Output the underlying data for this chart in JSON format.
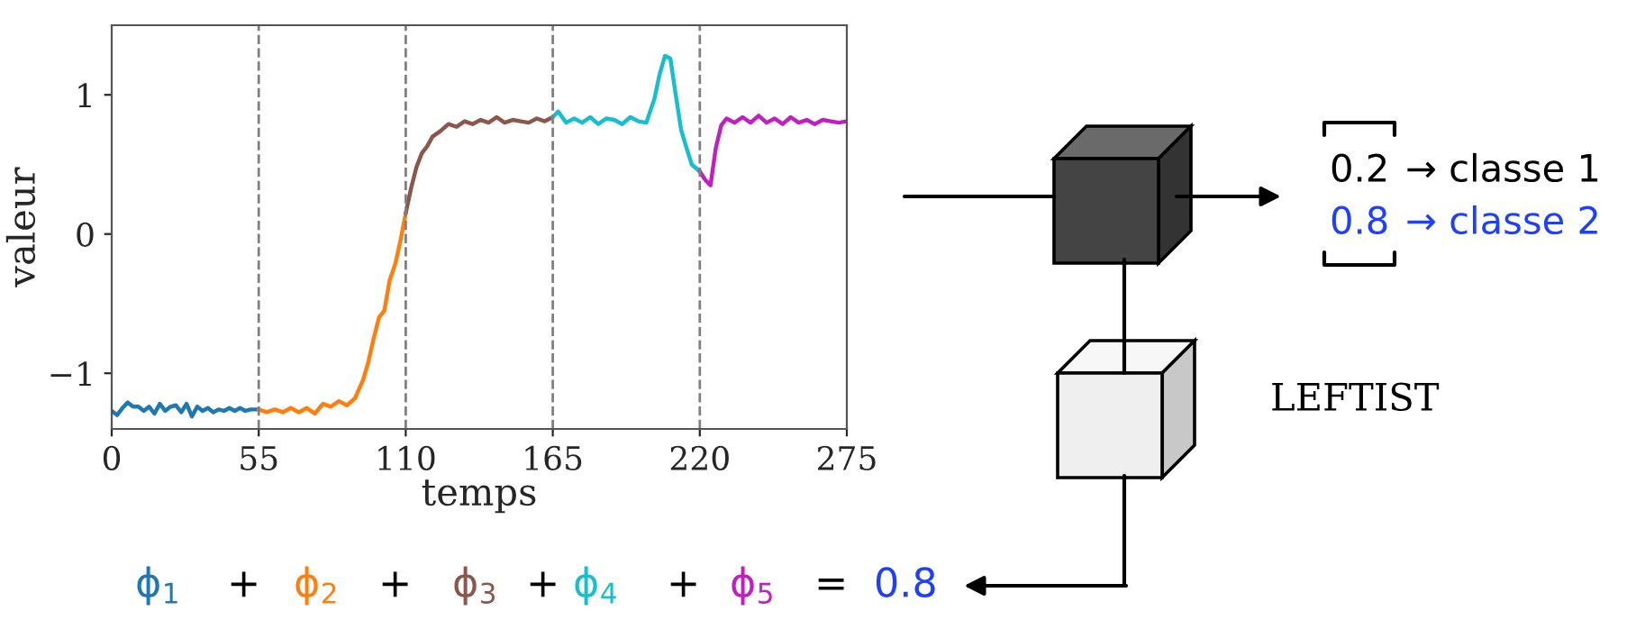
{
  "chart_data": {
    "type": "line",
    "xlabel": "temps",
    "ylabel": "valeur",
    "xlim": [
      0,
      275
    ],
    "xticks": [
      0,
      55,
      110,
      165,
      220,
      275
    ],
    "ylim": [
      -1.4,
      1.5
    ],
    "yticks": [
      {
        "value": -1,
        "label": "−1"
      },
      0,
      1
    ],
    "grid": false,
    "legend": false,
    "line_style": "solid",
    "marker": "none",
    "series": [
      {
        "color": "#1f77b4",
        "x": [
          0,
          2,
          4,
          6,
          8,
          10,
          12,
          14,
          16,
          18,
          20,
          22,
          24,
          26,
          28,
          30,
          32,
          34,
          36,
          38,
          40,
          42,
          44,
          46,
          48,
          50,
          52,
          55
        ],
        "values": [
          -1.27,
          -1.3,
          -1.25,
          -1.21,
          -1.24,
          -1.24,
          -1.27,
          -1.24,
          -1.29,
          -1.22,
          -1.27,
          -1.24,
          -1.23,
          -1.28,
          -1.22,
          -1.31,
          -1.24,
          -1.27,
          -1.25,
          -1.28,
          -1.26,
          -1.27,
          -1.25,
          -1.27,
          -1.25,
          -1.27,
          -1.26,
          -1.26
        ]
      },
      {
        "color": "#ff7f0e",
        "x": [
          55,
          58,
          61,
          64,
          67,
          70,
          73,
          76,
          79,
          82,
          85,
          88,
          91,
          94,
          96,
          98,
          100,
          102,
          104,
          106,
          108,
          110
        ],
        "values": [
          -1.26,
          -1.28,
          -1.26,
          -1.28,
          -1.25,
          -1.28,
          -1.25,
          -1.29,
          -1.22,
          -1.24,
          -1.2,
          -1.23,
          -1.18,
          -1.05,
          -0.92,
          -0.75,
          -0.6,
          -0.55,
          -0.33,
          -0.22,
          -0.05,
          0.15
        ]
      },
      {
        "color": "#8c564b",
        "x": [
          110,
          112,
          114,
          116,
          118,
          120,
          123,
          126,
          129,
          132,
          135,
          138,
          141,
          144,
          147,
          150,
          153,
          156,
          159,
          162,
          165
        ],
        "values": [
          0.15,
          0.33,
          0.48,
          0.58,
          0.63,
          0.7,
          0.74,
          0.79,
          0.77,
          0.81,
          0.79,
          0.82,
          0.8,
          0.84,
          0.8,
          0.82,
          0.81,
          0.8,
          0.83,
          0.81,
          0.84
        ]
      },
      {
        "color": "#17becf",
        "x": [
          165,
          167,
          170,
          173,
          176,
          179,
          182,
          185,
          188,
          191,
          194,
          197,
          200,
          203,
          205,
          207,
          209,
          211,
          213,
          215,
          217,
          220
        ],
        "values": [
          0.84,
          0.88,
          0.8,
          0.83,
          0.8,
          0.84,
          0.79,
          0.83,
          0.82,
          0.79,
          0.84,
          0.81,
          0.8,
          0.97,
          1.15,
          1.28,
          1.26,
          1.0,
          0.75,
          0.62,
          0.5,
          0.45
        ]
      },
      {
        "color": "#c21fc2",
        "x": [
          220,
          222,
          224,
          226,
          228,
          230,
          233,
          236,
          239,
          242,
          245,
          248,
          251,
          254,
          257,
          260,
          263,
          266,
          269,
          272,
          275
        ],
        "values": [
          0.45,
          0.39,
          0.35,
          0.62,
          0.78,
          0.83,
          0.8,
          0.84,
          0.8,
          0.85,
          0.8,
          0.83,
          0.79,
          0.84,
          0.8,
          0.82,
          0.79,
          0.82,
          0.81,
          0.8,
          0.81
        ]
      }
    ],
    "ref_lines": [
      {
        "axis": "x",
        "value": 55,
        "color": "#808080",
        "line_style": "dashed"
      },
      {
        "axis": "x",
        "value": 110,
        "color": "#808080",
        "line_style": "dashed"
      },
      {
        "axis": "x",
        "value": 165,
        "color": "#808080",
        "line_style": "dashed"
      },
      {
        "axis": "x",
        "value": 220,
        "color": "#808080",
        "line_style": "dashed"
      }
    ],
    "annotations": [
      "0.2",
      "→ classe 1",
      "0.8",
      "→ classe 2",
      "LEFTIST",
      "ϕ$_{1}$",
      "+",
      "ϕ$_{2}$",
      "+",
      "ϕ$_{3}$",
      "+",
      "ϕ$_{4}$",
      "+",
      "ϕ$_{5}$",
      "=",
      "0.8"
    ]
  }
}
